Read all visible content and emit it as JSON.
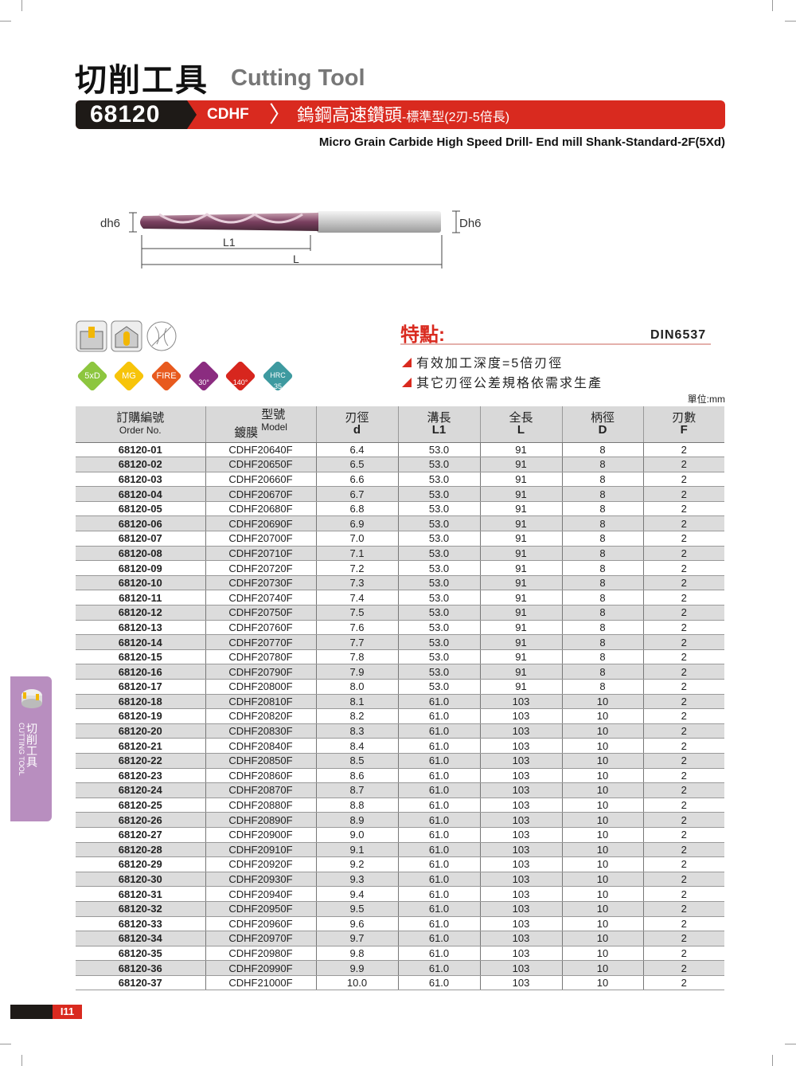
{
  "header": {
    "title_zh": "切削工具",
    "title_en": "Cutting Tool"
  },
  "banner": {
    "code": "68120",
    "series": "CDHF",
    "title_zh": "鎢鋼高速鑽頭",
    "title_zh_sub": "-標準型(2刃-5倍長)",
    "subtitle": "Micro Grain Carbide High Speed Drill- End mill Shank-Standard-2F(5Xd)"
  },
  "drawing": {
    "dh6": "dh6",
    "Dh6": "Dh6",
    "L1": "L1",
    "L": "L"
  },
  "badges": [
    {
      "label": "5xD",
      "color": "#8dc63f"
    },
    {
      "label": "MG",
      "color": "#f7c40a"
    },
    {
      "label": "FIRE",
      "color": "#e85a1e"
    },
    {
      "label": "30°",
      "color": "#8b2c80"
    },
    {
      "label": "140°",
      "color": "#d7261e"
    },
    {
      "label": "HRC 35",
      "color": "#3e9aa0"
    }
  ],
  "features": {
    "heading": "特點:",
    "standard": "DIN6537",
    "items": [
      "有效加工深度=5倍刃徑",
      "其它刃徑公差規格依需求生產"
    ]
  },
  "unit": "單位:mm",
  "table": {
    "headers": [
      {
        "zh": "訂購編號",
        "en": "Order No."
      },
      {
        "zh1": "鍍膜",
        "zh": "型號",
        "en": "Model"
      },
      {
        "zh": "刃徑",
        "en": "d"
      },
      {
        "zh": "溝長",
        "en": "L1"
      },
      {
        "zh": "全長",
        "en": "L"
      },
      {
        "zh": "柄徑",
        "en": "D"
      },
      {
        "zh": "刃數",
        "en": "F"
      }
    ],
    "rows": [
      [
        "68120-01",
        "CDHF20640F",
        "6.4",
        "53.0",
        "91",
        "8",
        "2"
      ],
      [
        "68120-02",
        "CDHF20650F",
        "6.5",
        "53.0",
        "91",
        "8",
        "2"
      ],
      [
        "68120-03",
        "CDHF20660F",
        "6.6",
        "53.0",
        "91",
        "8",
        "2"
      ],
      [
        "68120-04",
        "CDHF20670F",
        "6.7",
        "53.0",
        "91",
        "8",
        "2"
      ],
      [
        "68120-05",
        "CDHF20680F",
        "6.8",
        "53.0",
        "91",
        "8",
        "2"
      ],
      [
        "68120-06",
        "CDHF20690F",
        "6.9",
        "53.0",
        "91",
        "8",
        "2"
      ],
      [
        "68120-07",
        "CDHF20700F",
        "7.0",
        "53.0",
        "91",
        "8",
        "2"
      ],
      [
        "68120-08",
        "CDHF20710F",
        "7.1",
        "53.0",
        "91",
        "8",
        "2"
      ],
      [
        "68120-09",
        "CDHF20720F",
        "7.2",
        "53.0",
        "91",
        "8",
        "2"
      ],
      [
        "68120-10",
        "CDHF20730F",
        "7.3",
        "53.0",
        "91",
        "8",
        "2"
      ],
      [
        "68120-11",
        "CDHF20740F",
        "7.4",
        "53.0",
        "91",
        "8",
        "2"
      ],
      [
        "68120-12",
        "CDHF20750F",
        "7.5",
        "53.0",
        "91",
        "8",
        "2"
      ],
      [
        "68120-13",
        "CDHF20760F",
        "7.6",
        "53.0",
        "91",
        "8",
        "2"
      ],
      [
        "68120-14",
        "CDHF20770F",
        "7.7",
        "53.0",
        "91",
        "8",
        "2"
      ],
      [
        "68120-15",
        "CDHF20780F",
        "7.8",
        "53.0",
        "91",
        "8",
        "2"
      ],
      [
        "68120-16",
        "CDHF20790F",
        "7.9",
        "53.0",
        "91",
        "8",
        "2"
      ],
      [
        "68120-17",
        "CDHF20800F",
        "8.0",
        "53.0",
        "91",
        "8",
        "2"
      ],
      [
        "68120-18",
        "CDHF20810F",
        "8.1",
        "61.0",
        "103",
        "10",
        "2"
      ],
      [
        "68120-19",
        "CDHF20820F",
        "8.2",
        "61.0",
        "103",
        "10",
        "2"
      ],
      [
        "68120-20",
        "CDHF20830F",
        "8.3",
        "61.0",
        "103",
        "10",
        "2"
      ],
      [
        "68120-21",
        "CDHF20840F",
        "8.4",
        "61.0",
        "103",
        "10",
        "2"
      ],
      [
        "68120-22",
        "CDHF20850F",
        "8.5",
        "61.0",
        "103",
        "10",
        "2"
      ],
      [
        "68120-23",
        "CDHF20860F",
        "8.6",
        "61.0",
        "103",
        "10",
        "2"
      ],
      [
        "68120-24",
        "CDHF20870F",
        "8.7",
        "61.0",
        "103",
        "10",
        "2"
      ],
      [
        "68120-25",
        "CDHF20880F",
        "8.8",
        "61.0",
        "103",
        "10",
        "2"
      ],
      [
        "68120-26",
        "CDHF20890F",
        "8.9",
        "61.0",
        "103",
        "10",
        "2"
      ],
      [
        "68120-27",
        "CDHF20900F",
        "9.0",
        "61.0",
        "103",
        "10",
        "2"
      ],
      [
        "68120-28",
        "CDHF20910F",
        "9.1",
        "61.0",
        "103",
        "10",
        "2"
      ],
      [
        "68120-29",
        "CDHF20920F",
        "9.2",
        "61.0",
        "103",
        "10",
        "2"
      ],
      [
        "68120-30",
        "CDHF20930F",
        "9.3",
        "61.0",
        "103",
        "10",
        "2"
      ],
      [
        "68120-31",
        "CDHF20940F",
        "9.4",
        "61.0",
        "103",
        "10",
        "2"
      ],
      [
        "68120-32",
        "CDHF20950F",
        "9.5",
        "61.0",
        "103",
        "10",
        "2"
      ],
      [
        "68120-33",
        "CDHF20960F",
        "9.6",
        "61.0",
        "103",
        "10",
        "2"
      ],
      [
        "68120-34",
        "CDHF20970F",
        "9.7",
        "61.0",
        "103",
        "10",
        "2"
      ],
      [
        "68120-35",
        "CDHF20980F",
        "9.8",
        "61.0",
        "103",
        "10",
        "2"
      ],
      [
        "68120-36",
        "CDHF20990F",
        "9.9",
        "61.0",
        "103",
        "10",
        "2"
      ],
      [
        "68120-37",
        "CDHF21000F",
        "10.0",
        "61.0",
        "103",
        "10",
        "2"
      ]
    ]
  },
  "side_tab": {
    "zh": "切削工具",
    "en": "CUTTING TOOL"
  },
  "page_number": "I11"
}
